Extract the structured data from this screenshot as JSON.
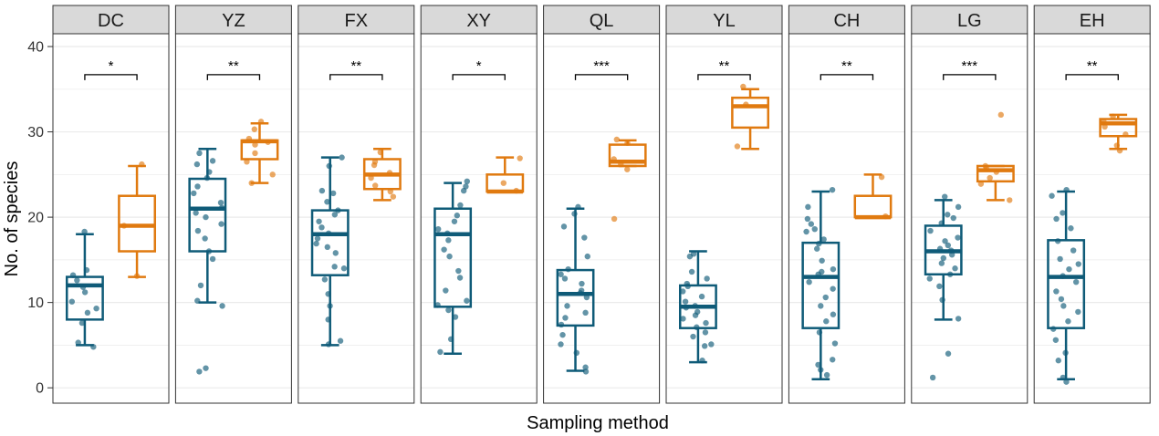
{
  "chart_data": {
    "type": "boxplot",
    "title": "",
    "xlabel": "Sampling method",
    "ylabel": "No. of species",
    "ylim": [
      -1.8,
      41.5
    ],
    "yticks": [
      0,
      10,
      20,
      30,
      40
    ],
    "grid": true,
    "legend": "none",
    "colors": {
      "group1": "#0f5b78",
      "group2": "#e07a10",
      "strip_fill": "#d9d9d9",
      "grid": "#ebebeb"
    },
    "facets": [
      {
        "name": "DC",
        "signif": "*",
        "group1": {
          "min": 5,
          "q1": 8,
          "median": 12,
          "q3": 13,
          "max": 18,
          "points": [
            18.3,
            13.8,
            13.2,
            12.6,
            11.8,
            11.2,
            10.1,
            9.3,
            8.8,
            7.6,
            5.3,
            4.8
          ]
        },
        "group2": {
          "min": 13,
          "q1": 16,
          "median": 19,
          "q3": 22.5,
          "max": 26,
          "points": [
            26.2,
            19,
            13.1
          ]
        }
      },
      {
        "name": "YZ",
        "signif": "**",
        "group1": {
          "min": 10,
          "q1": 16,
          "median": 21,
          "q3": 24.5,
          "max": 28,
          "points": [
            27.5,
            26.6,
            26.2,
            25.3,
            24.6,
            23.6,
            22.8,
            21.7,
            21.1,
            20.5,
            20,
            19.2,
            18.4,
            17.5,
            16,
            15.1,
            12,
            10.2,
            9.6,
            2.3,
            1.9
          ]
        },
        "group2": {
          "min": 24,
          "q1": 26.8,
          "median": 28.9,
          "q3": 29,
          "max": 31,
          "points": [
            31.2,
            30.3,
            29.2,
            28.8,
            28.5,
            27.5,
            26.5,
            25,
            24
          ]
        }
      },
      {
        "name": "FX",
        "signif": "**",
        "group1": {
          "min": 5,
          "q1": 13.2,
          "median": 18,
          "q3": 20.8,
          "max": 27,
          "points": [
            27,
            26,
            23.1,
            22.8,
            21.8,
            20.8,
            20.3,
            19.5,
            18.8,
            18.1,
            17.5,
            16.9,
            16.5,
            15.8,
            14.2,
            14,
            12.7,
            11,
            9.6,
            8,
            5.5,
            5.1
          ]
        },
        "group2": {
          "min": 22,
          "q1": 23.3,
          "median": 25,
          "q3": 26.8,
          "max": 28,
          "points": [
            27.6,
            26.5,
            26.1,
            25.2,
            24.6,
            23.7,
            23,
            22.4
          ]
        }
      },
      {
        "name": "XY",
        "signif": "*",
        "group1": {
          "min": 4,
          "q1": 9.5,
          "median": 18,
          "q3": 21,
          "max": 24,
          "points": [
            24.2,
            23.6,
            23.1,
            21.4,
            20.2,
            19.5,
            18.6,
            18.1,
            17.3,
            16.2,
            15.4,
            13.7,
            12.9,
            11.4,
            10.2,
            9.7,
            9.1,
            8.3,
            5.7,
            4.2
          ]
        },
        "group2": {
          "min": 23,
          "q1": 23,
          "median": 23,
          "q3": 25,
          "max": 27,
          "points": [
            26.9,
            24,
            23.1
          ]
        }
      },
      {
        "name": "QL",
        "signif": "***",
        "group1": {
          "min": 2,
          "q1": 7.3,
          "median": 11,
          "q3": 13.8,
          "max": 21,
          "points": [
            21.2,
            20.4,
            18.9,
            17.6,
            15.4,
            13.9,
            13.3,
            12.8,
            12.2,
            11.4,
            11.1,
            10.6,
            9.6,
            8.8,
            8.2,
            7.4,
            6.2,
            5.1,
            4.1,
            2.4,
            1.9
          ]
        },
        "group2": {
          "min": 26,
          "q1": 26,
          "median": 26.5,
          "q3": 28.5,
          "max": 29,
          "points": [
            29.1,
            28.7,
            26.8,
            26.2,
            25.6,
            19.8
          ]
        }
      },
      {
        "name": "YL",
        "signif": "**",
        "group1": {
          "min": 3,
          "q1": 7,
          "median": 9.5,
          "q3": 12,
          "max": 16,
          "points": [
            15.7,
            15.4,
            13.6,
            12.8,
            12.2,
            11.9,
            11.3,
            10.7,
            10.1,
            9.6,
            9.4,
            8.9,
            8.5,
            8.1,
            7.6,
            7.1,
            6.5,
            6,
            5.1,
            4.9,
            3.2
          ]
        },
        "group2": {
          "min": 28,
          "q1": 30.5,
          "median": 33,
          "q3": 34,
          "max": 35,
          "points": [
            35.3,
            33.2,
            28.3
          ]
        }
      },
      {
        "name": "CH",
        "signif": "**",
        "group1": {
          "min": 1,
          "q1": 7,
          "median": 13,
          "q3": 17,
          "max": 23,
          "points": [
            23.2,
            21.2,
            19.8,
            19.2,
            18.6,
            18.3,
            17.4,
            16.9,
            16.3,
            14.9,
            13.9,
            13.6,
            13.3,
            12.4,
            11.6,
            10.6,
            9.6,
            8.6,
            7.8,
            6.5,
            5.2,
            3.3,
            2.7,
            2.1,
            1.5
          ]
        },
        "group2": {
          "min": 20,
          "q1": 20,
          "median": 20,
          "q3": 22.5,
          "max": 25,
          "points": [
            24.7,
            20.1
          ]
        }
      },
      {
        "name": "LG",
        "signif": "***",
        "group1": {
          "min": 8,
          "q1": 13.3,
          "median": 16,
          "q3": 19,
          "max": 22,
          "points": [
            22.4,
            21.2,
            20.3,
            19.9,
            19.3,
            18.4,
            17.6,
            17.2,
            16.7,
            16.3,
            16.1,
            15.6,
            15.2,
            14.6,
            14,
            13.3,
            12.8,
            11.9,
            10.3,
            8.1,
            4,
            1.2
          ]
        },
        "group2": {
          "min": 22,
          "q1": 24.2,
          "median": 25.5,
          "q3": 26,
          "max": 26,
          "points": [
            32,
            26,
            25.7,
            25.3,
            24.6,
            23.9,
            22
          ]
        }
      },
      {
        "name": "EH",
        "signif": "**",
        "group1": {
          "min": 1,
          "q1": 7,
          "median": 13,
          "q3": 17.3,
          "max": 23,
          "points": [
            23.2,
            22.5,
            20.5,
            19.8,
            18.7,
            17.2,
            16.1,
            15.1,
            14.5,
            13.9,
            13.1,
            12.4,
            11.3,
            10.4,
            9.6,
            8.9,
            7.8,
            6.9,
            5.6,
            4.1,
            3.2,
            1.2,
            0.7
          ]
        },
        "group2": {
          "min": 28,
          "q1": 29.5,
          "median": 31,
          "q3": 31.5,
          "max": 32,
          "points": [
            31.8,
            31.2,
            30.6,
            29.7,
            28.4,
            27.8
          ]
        }
      }
    ]
  }
}
